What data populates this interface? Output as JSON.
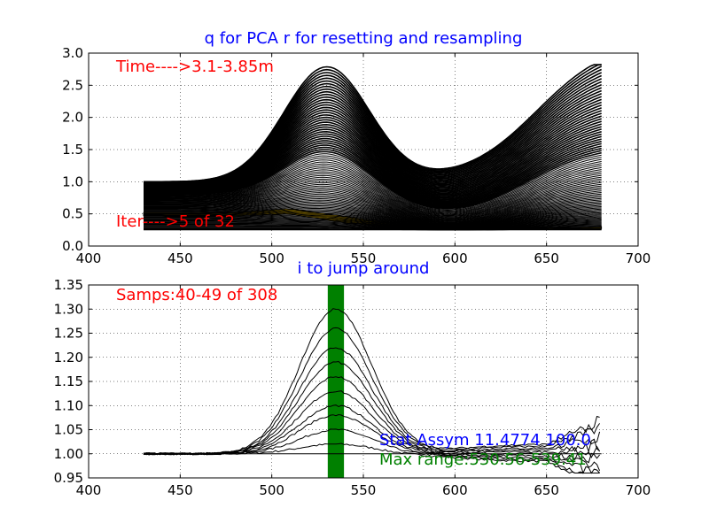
{
  "chart_data": [
    {
      "type": "line",
      "title": "q for PCA r for resetting and resampling",
      "xlim": [
        400,
        700
      ],
      "ylim": [
        0.0,
        3.0
      ],
      "xticks": [
        "400",
        "450",
        "500",
        "550",
        "600",
        "650",
        "700"
      ],
      "yticks": [
        "0.0",
        "0.5",
        "1.0",
        "1.5",
        "2.0",
        "2.5",
        "3.0"
      ],
      "grid": true,
      "annotations": [
        {
          "text": "Time---->3.1-3.85m",
          "color": "#ff0000"
        },
        {
          "text": "Iter---->5 of 32",
          "color": "#ff0000"
        }
      ],
      "series_overview": {
        "x_range": [
          430,
          680
        ],
        "count": 308,
        "start_values_range": [
          0.25,
          1.0
        ],
        "max_peak": {
          "x": 530,
          "y": 2.78
        },
        "max_end": {
          "x": 680,
          "y": 2.82
        },
        "color": "#000000"
      },
      "highlight_band": {
        "color": "#ffcc00",
        "x": [
          430,
          480,
          510,
          540,
          580,
          620,
          650,
          680
        ],
        "y_low": [
          0.47,
          0.47,
          0.5,
          0.36,
          0.27,
          0.25,
          0.26,
          0.27
        ],
        "y_high": [
          0.52,
          0.52,
          0.58,
          0.46,
          0.3,
          0.27,
          0.28,
          0.3
        ]
      }
    },
    {
      "type": "line",
      "title": "i to jump around",
      "xlim": [
        400,
        700
      ],
      "ylim": [
        0.95,
        1.35
      ],
      "xticks": [
        "400",
        "450",
        "500",
        "550",
        "600",
        "650",
        "700"
      ],
      "yticks": [
        "0.95",
        "1.00",
        "1.05",
        "1.10",
        "1.15",
        "1.20",
        "1.25",
        "1.30",
        "1.35"
      ],
      "grid": true,
      "annotations": [
        {
          "text": "Samps:40-49  of  308",
          "color": "#ff0000"
        },
        {
          "text": "Stat Assym 11.4774  100.0",
          "color": "#0000ff"
        },
        {
          "text": "Max range:530.56-539.41",
          "color": "#008000"
        }
      ],
      "vertical_band": {
        "x_range": [
          530.56,
          539.41
        ],
        "color": "#008000"
      },
      "baseline": 1.0,
      "series_peaks": [
        1.02,
        1.05,
        1.08,
        1.1,
        1.13,
        1.16,
        1.19,
        1.22,
        1.26,
        1.3
      ],
      "peak_x": 535,
      "tail_noise_x": [
        650,
        680
      ],
      "tail_values_range": [
        0.96,
        1.1
      ],
      "color": "#000000"
    }
  ]
}
